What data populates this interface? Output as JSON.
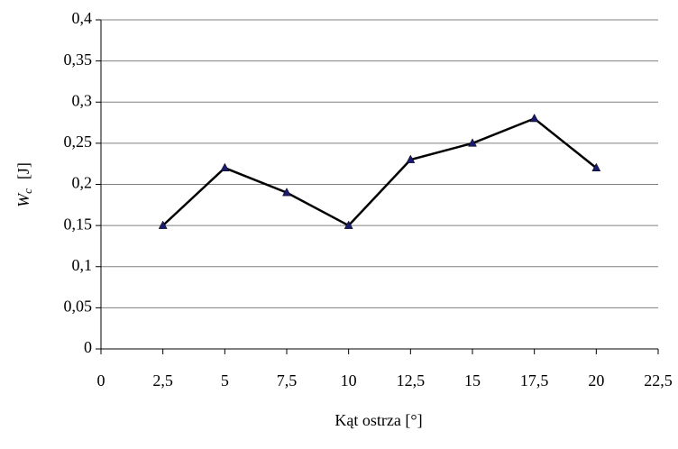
{
  "chart_data": {
    "type": "line",
    "x_label": "Kąt ostrza [°]",
    "y_label": {
      "symbol": "W",
      "subscript": "c",
      "unit": "[J]"
    },
    "x": [
      2.5,
      5,
      7.5,
      10,
      12.5,
      15,
      17.5,
      20
    ],
    "series": [
      {
        "color": "#000000",
        "marker_color": "#1a1a6e",
        "values": [
          0.15,
          0.22,
          0.19,
          0.15,
          0.23,
          0.25,
          0.28,
          0.22
        ]
      }
    ],
    "xlim": [
      0,
      22.5
    ],
    "xticks": [
      0,
      {
        "value": 2.5,
        "label": "2,5"
      },
      5,
      {
        "value": 7.5,
        "label": "7,5"
      },
      10,
      {
        "value": 12.5,
        "label": "12,5"
      },
      15,
      {
        "value": 17.5,
        "label": "17,5"
      },
      20,
      {
        "value": 22.5,
        "label": "22,5"
      }
    ],
    "ylim": [
      0,
      0.4
    ],
    "yticks": [
      0,
      {
        "value": 0.05,
        "label": "0,05"
      },
      {
        "value": 0.1,
        "label": "0,1"
      },
      {
        "value": 0.15,
        "label": "0,15"
      },
      {
        "value": 0.2,
        "label": "0,2"
      },
      {
        "value": 0.25,
        "label": "0,25"
      },
      {
        "value": 0.3,
        "label": "0,3"
      },
      {
        "value": 0.35,
        "label": "0,35"
      },
      {
        "value": 0.4,
        "label": "0,4"
      }
    ],
    "grid": true
  }
}
